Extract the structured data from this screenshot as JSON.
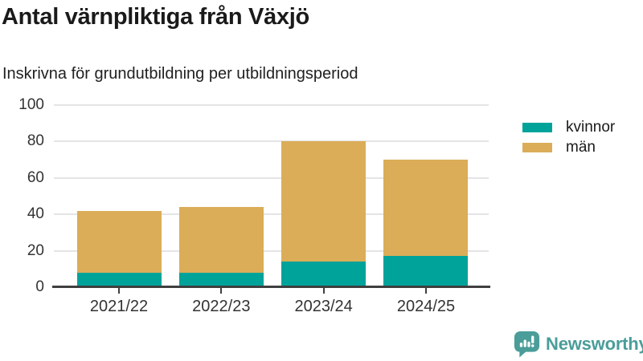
{
  "title": "Antal värnpliktiga från Växjö",
  "subtitle": "Inskrivna för grundutbildning per utbildningsperiod",
  "branding": {
    "logo_text": "Newsworthy",
    "logo_icon": "bar-chart-speech-bubble-icon",
    "logo_color": "#4a9d99"
  },
  "colors": {
    "kvinnor": "#00A39A",
    "man": "#DBAD58",
    "axis": "#3f3f3f",
    "gridline": "#e4e4e4",
    "text": "#1a1a1a"
  },
  "chart_data": {
    "type": "bar",
    "stacked": true,
    "title": "Antal värnpliktiga från Växjö",
    "subtitle": "Inskrivna för grundutbildning per utbildningsperiod",
    "categories": [
      "2021/22",
      "2022/23",
      "2023/24",
      "2024/25"
    ],
    "series": [
      {
        "name": "kvinnor",
        "color": "#00A39A",
        "values": [
          8,
          8,
          14,
          17
        ]
      },
      {
        "name": "män",
        "color": "#DBAD58",
        "values": [
          34,
          36,
          66,
          53
        ]
      }
    ],
    "stacked_totals": [
      42,
      44,
      80,
      70
    ],
    "xlabel": "",
    "ylabel": "",
    "ylim": [
      0,
      100
    ],
    "yticks": [
      0,
      20,
      40,
      60,
      80,
      100
    ],
    "grid": "horizontal",
    "legend_position": "right"
  }
}
